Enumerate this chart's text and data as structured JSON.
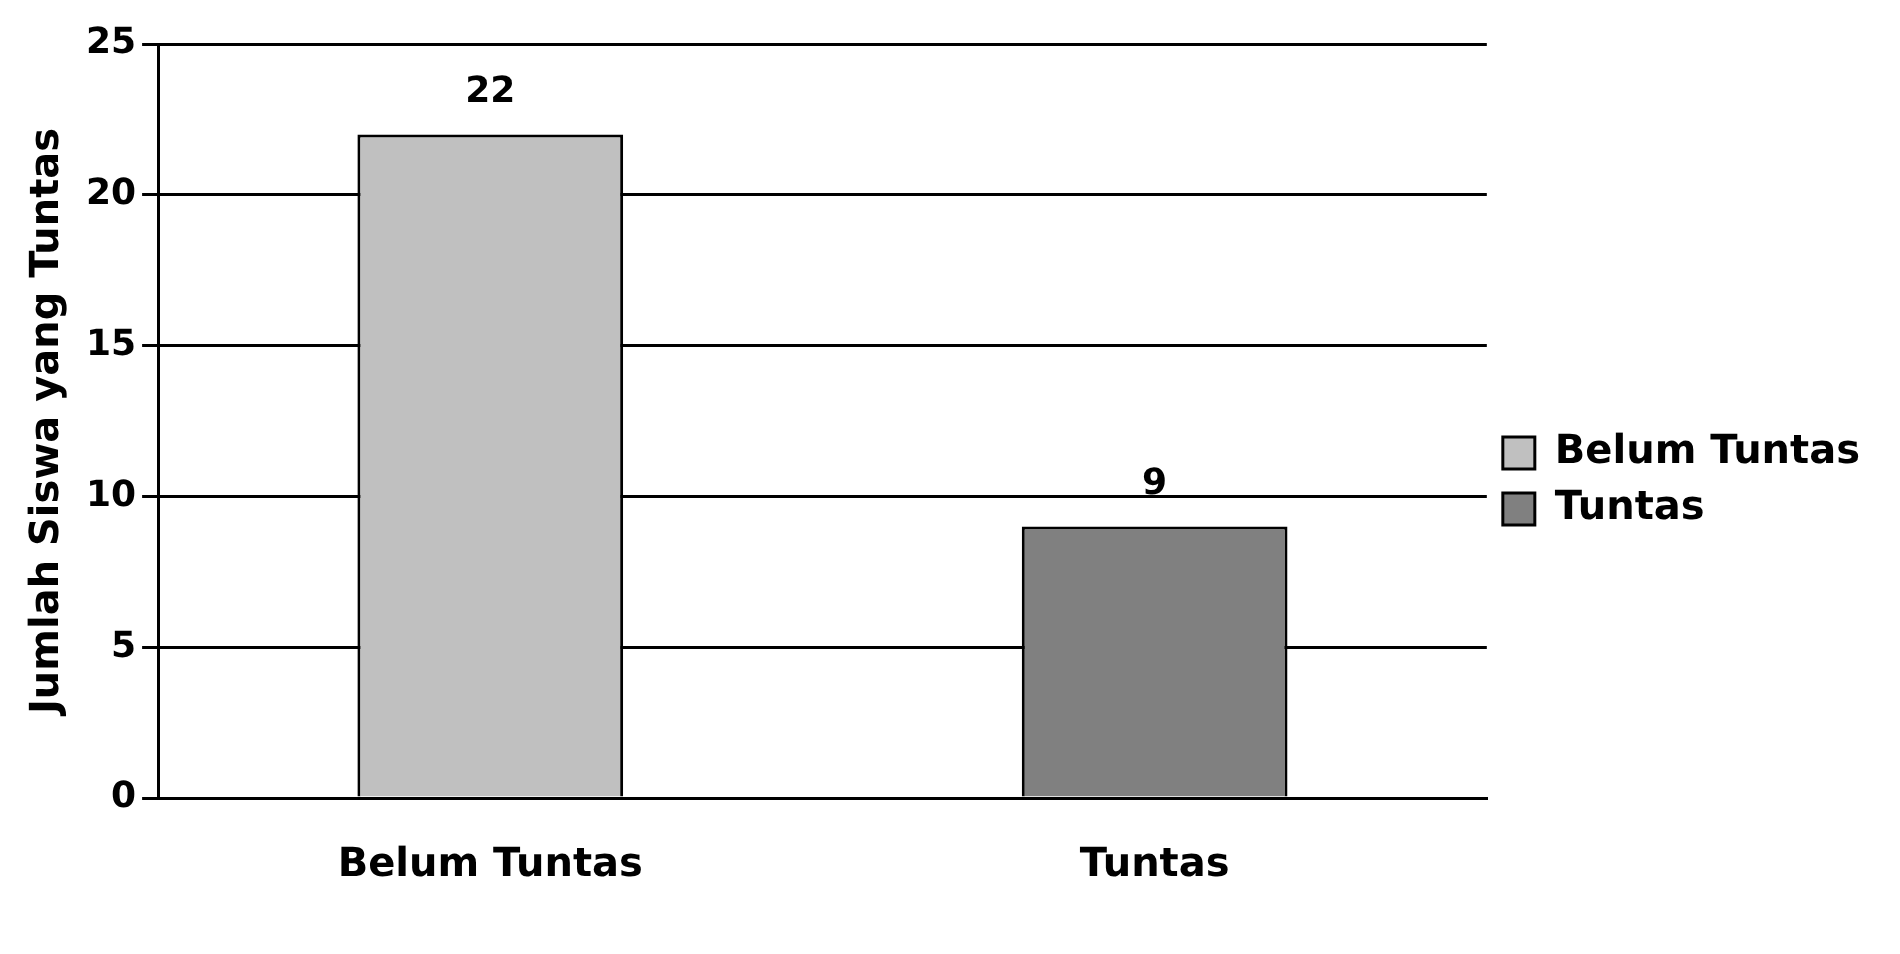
{
  "chart_data": {
    "type": "bar",
    "ylabel": "Jumlah Siswa yang Tuntas",
    "categories": [
      "Belum Tuntas",
      "Tuntas"
    ],
    "series": [
      {
        "name": "Belum Tuntas",
        "color": "#c0c0c0",
        "values": [
          22,
          null
        ]
      },
      {
        "name": "Tuntas",
        "color": "#808080",
        "values": [
          null,
          9
        ]
      }
    ],
    "ylim": [
      0,
      25
    ],
    "yticks": [
      0,
      5,
      10,
      15,
      20,
      25
    ],
    "grid": "y",
    "legend": "right",
    "data_labels": true
  }
}
